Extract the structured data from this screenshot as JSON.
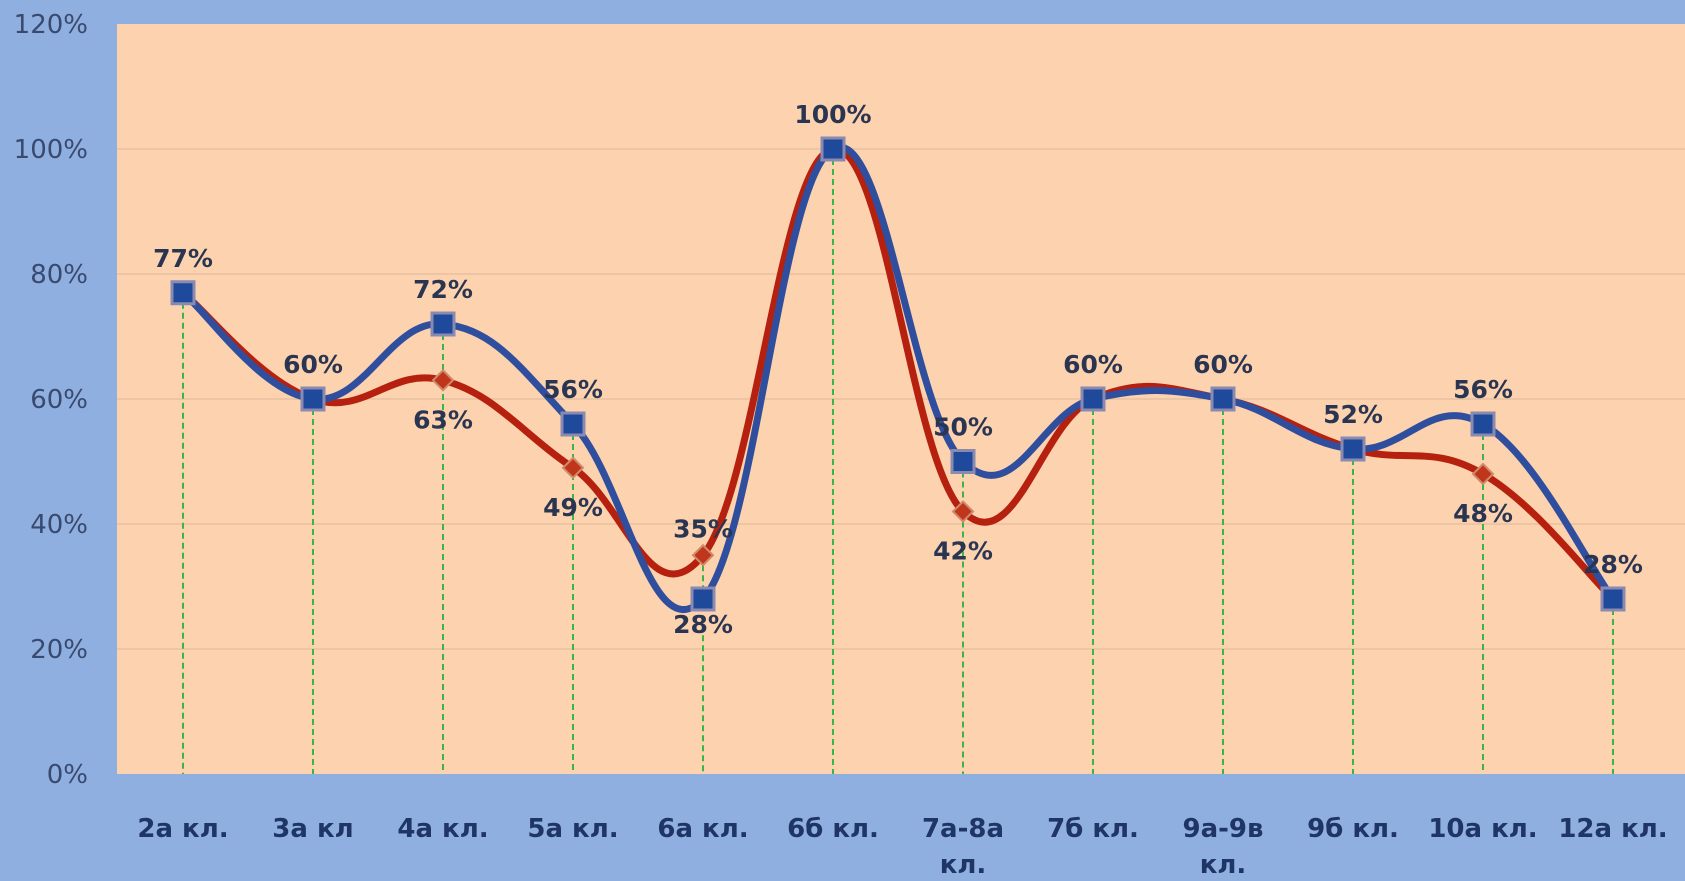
{
  "chart_data": {
    "type": "line",
    "categories": [
      [
        "2а кл."
      ],
      [
        "3а кл"
      ],
      [
        "4а кл."
      ],
      [
        "5а кл."
      ],
      [
        "6а кл."
      ],
      [
        "6б кл."
      ],
      [
        "7а-8а",
        "кл."
      ],
      [
        "7б кл."
      ],
      [
        "9а-9в",
        "кл."
      ],
      [
        "9б кл."
      ],
      [
        "10а  кл."
      ],
      [
        "12а кл."
      ]
    ],
    "series": [
      {
        "color": "#2f4f9e",
        "marker": "square",
        "values": [
          77,
          60,
          72,
          56,
          28,
          100,
          50,
          60,
          60,
          52,
          56,
          28
        ],
        "labels": [
          "77%",
          "60%",
          "72%",
          "56%",
          "28%",
          "100%",
          "50%",
          "60%",
          "60%",
          "52%",
          "56%",
          "28%"
        ]
      },
      {
        "color": "#b5200f",
        "marker": "diamond",
        "values": [
          77,
          60,
          63,
          49,
          35,
          100,
          42,
          60,
          60,
          52,
          48,
          28
        ],
        "labels": [
          "",
          "",
          "63%",
          "49%",
          "35%",
          "",
          "42%",
          "",
          "",
          "",
          "48%",
          ""
        ]
      }
    ],
    "y_ticks": [
      "0%",
      "20%",
      "40%",
      "60%",
      "80%",
      "100%",
      "120%"
    ],
    "ylim": [
      0,
      120
    ],
    "grid": true,
    "drop_lines": true,
    "plot_background": "#fdd2ae",
    "page_background": "#8fafe0",
    "gridline_color": "#e8c0a0",
    "drop_line_color": "#39b54a"
  }
}
